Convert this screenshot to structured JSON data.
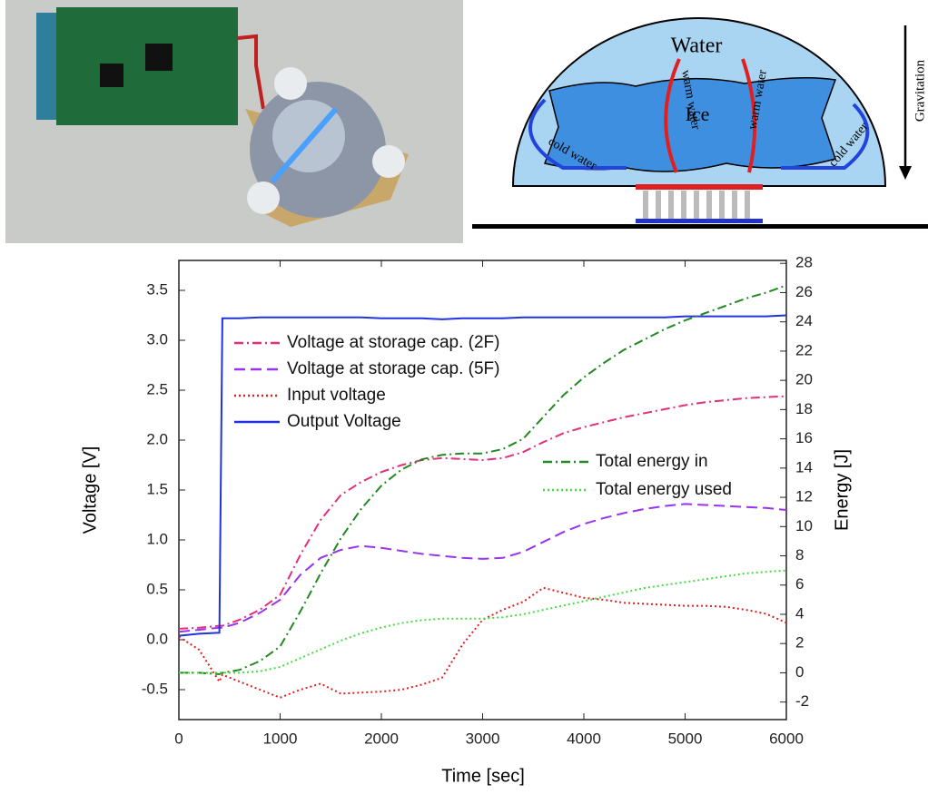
{
  "chart_data": {
    "type": "line",
    "x_label": "Time [sec]",
    "y_label": "Voltage [V]",
    "y2_label": "Energy [J]",
    "x": [
      0,
      200,
      400,
      430,
      600,
      800,
      1000,
      1200,
      1400,
      1600,
      1800,
      2000,
      2200,
      2400,
      2600,
      2800,
      3000,
      3200,
      3400,
      3600,
      3800,
      4000,
      4200,
      4400,
      4600,
      4800,
      5000,
      5200,
      5400,
      5600,
      5800,
      6000
    ],
    "series": [
      {
        "name": "Voltage at storage cap. (2F)",
        "color": "#e0307a",
        "dash": "dashdot",
        "values": [
          0.11,
          0.12,
          0.14,
          0.14,
          0.2,
          0.3,
          0.45,
          0.85,
          1.2,
          1.45,
          1.58,
          1.68,
          1.75,
          1.8,
          1.82,
          1.81,
          1.8,
          1.82,
          1.88,
          1.98,
          2.07,
          2.13,
          2.18,
          2.23,
          2.27,
          2.31,
          2.35,
          2.38,
          2.4,
          2.42,
          2.43,
          2.44
        ]
      },
      {
        "name": "Voltage at storage cap. (5F)",
        "color": "#9933ee",
        "dash": "dash",
        "values": [
          0.08,
          0.1,
          0.12,
          0.12,
          0.17,
          0.27,
          0.4,
          0.65,
          0.82,
          0.9,
          0.94,
          0.92,
          0.89,
          0.86,
          0.84,
          0.82,
          0.81,
          0.82,
          0.88,
          0.98,
          1.08,
          1.16,
          1.22,
          1.27,
          1.31,
          1.34,
          1.36,
          1.35,
          1.34,
          1.33,
          1.32,
          1.3
        ]
      },
      {
        "name": "Input voltage",
        "color": "#e02020",
        "dash": "dot",
        "values": [
          0.03,
          -0.1,
          -0.42,
          -0.35,
          -0.42,
          -0.5,
          -0.58,
          -0.5,
          -0.44,
          -0.54,
          -0.53,
          -0.52,
          -0.5,
          -0.45,
          -0.38,
          -0.05,
          0.2,
          0.3,
          0.38,
          0.52,
          0.47,
          0.42,
          0.4,
          0.37,
          0.36,
          0.35,
          0.34,
          0.34,
          0.33,
          0.3,
          0.26,
          0.17
        ]
      },
      {
        "name": "Output Voltage",
        "color": "#2233dd",
        "dash": "solid",
        "values": [
          0.04,
          0.06,
          0.07,
          3.22,
          3.22,
          3.23,
          3.23,
          3.23,
          3.23,
          3.23,
          3.23,
          3.22,
          3.22,
          3.22,
          3.21,
          3.22,
          3.22,
          3.22,
          3.23,
          3.23,
          3.23,
          3.23,
          3.23,
          3.23,
          3.23,
          3.23,
          3.24,
          3.24,
          3.24,
          3.24,
          3.24,
          3.25
        ]
      },
      {
        "name": "Total energy in",
        "color": "#228822",
        "dash": "dashdot",
        "axis": "y2",
        "values": [
          0,
          0,
          -0.1,
          0,
          0.2,
          0.8,
          1.8,
          4.2,
          6.8,
          9.2,
          11.2,
          12.8,
          13.9,
          14.6,
          14.9,
          15,
          15,
          15.3,
          16,
          17.5,
          19,
          20.2,
          21.2,
          22.1,
          22.8,
          23.5,
          24.1,
          24.6,
          25.1,
          25.6,
          26,
          26.5
        ]
      },
      {
        "name": "Total energy used",
        "color": "#44dd44",
        "dash": "dot",
        "axis": "y2",
        "values": [
          0,
          0,
          0,
          0,
          0,
          0.1,
          0.4,
          1,
          1.6,
          2.2,
          2.7,
          3.1,
          3.4,
          3.6,
          3.7,
          3.7,
          3.7,
          3.8,
          4,
          4.3,
          4.6,
          4.9,
          5.2,
          5.5,
          5.8,
          6,
          6.2,
          6.4,
          6.6,
          6.8,
          6.9,
          7
        ]
      }
    ],
    "xlim": [
      0,
      6000
    ],
    "xticks": [
      0,
      1000,
      2000,
      3000,
      4000,
      5000,
      6000
    ],
    "ylim": [
      -0.8,
      3.8
    ],
    "yticks": [
      -0.5,
      {
        "value": 0,
        "label": "0.0"
      },
      0.5,
      {
        "value": 1,
        "label": "1.0"
      },
      1.5,
      {
        "value": 2,
        "label": "2.0"
      },
      2.5,
      {
        "value": 3,
        "label": "3.0"
      },
      3.5
    ],
    "y2lim": [
      -3.2,
      28.2
    ],
    "y2ticks": [
      -2,
      0,
      2,
      4,
      6,
      8,
      10,
      12,
      14,
      16,
      18,
      20,
      22,
      24,
      26,
      28
    ],
    "grid": false
  },
  "diagram": {
    "labels": [
      "Water",
      "Ice",
      "warm water",
      "warm water",
      "cold water",
      "cold water",
      "Gravitation"
    ]
  }
}
